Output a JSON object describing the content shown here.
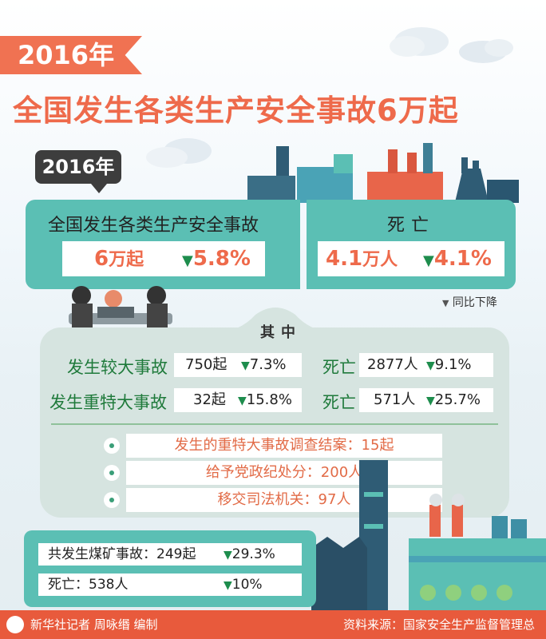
{
  "header": {
    "year_ribbon": "2016年",
    "title": "全国发生各类生产安全事故6万起"
  },
  "summary": {
    "year_bubble": "2016年",
    "accidents": {
      "label": "全国发生各类生产安全事故",
      "value_number": "6",
      "value_unit": "万起",
      "change": "5.8%"
    },
    "deaths": {
      "label": "死亡",
      "value_number": "4.1",
      "value_unit": "万人",
      "change": "4.1%"
    },
    "legend": "同比下降"
  },
  "details": {
    "heading": "其中",
    "rows": [
      {
        "label": "发生较大事故",
        "count": "750起",
        "change": "7.3%",
        "death_label": "死亡",
        "deaths": "2877人",
        "death_change": "9.1%"
      },
      {
        "label": "发生重特大事故",
        "count": "32起",
        "change": "15.8%",
        "death_label": "死亡",
        "deaths": "571人",
        "death_change": "25.7%"
      }
    ],
    "bullets": [
      "发生的重特大事故调查结案：15起",
      "给予党政纪处分：200人",
      "移交司法机关：97人"
    ]
  },
  "coal": {
    "accidents_text": "共发生煤矿事故：249起",
    "accidents_change": "29.3%",
    "deaths_text": "死亡：538人",
    "deaths_change": "10%"
  },
  "footer": {
    "credit": "新华社记者 周咏缗 编制",
    "source": "资料来源：国家安全生产监督管理总局"
  },
  "colors": {
    "accent": "#ee6a4b",
    "teal": "#5bbfb4",
    "decline": "#1e8d4d",
    "footer": "#e85a3c"
  }
}
